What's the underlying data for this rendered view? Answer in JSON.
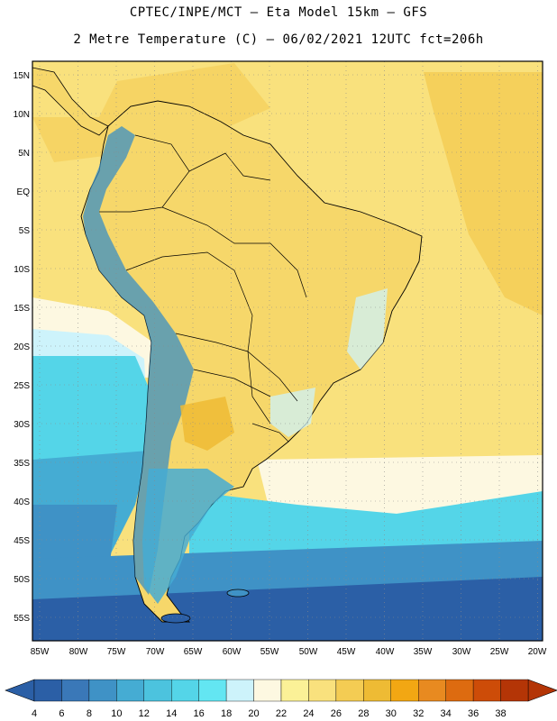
{
  "header": {
    "line1": "CPTEC/INPE/MCT –  Eta Model 15km – GFS",
    "line2": "2 Metre Temperature (C) – 06/02/2021 12UTC fct=206h"
  },
  "axes": {
    "lat_labels": [
      "15N",
      "10N",
      "5N",
      "EQ",
      "5S",
      "10S",
      "15S",
      "20S",
      "25S",
      "30S",
      "35S",
      "40S",
      "45S",
      "50S",
      "55S"
    ],
    "lon_labels": [
      "85W",
      "80W",
      "75W",
      "70W",
      "65W",
      "60W",
      "55W",
      "50W",
      "45W",
      "40W",
      "35W",
      "30W",
      "25W",
      "20W"
    ]
  },
  "colorbar": {
    "labels": [
      "4",
      "6",
      "8",
      "10",
      "12",
      "14",
      "16",
      "18",
      "20",
      "22",
      "24",
      "26",
      "28",
      "30",
      "32",
      "34",
      "36",
      "38"
    ],
    "colors": [
      "#2b5fa6",
      "#3a78b8",
      "#3f92c6",
      "#45acd3",
      "#4cc3de",
      "#54d5e8",
      "#63e6f2",
      "#cdf3fb",
      "#fdf8e1",
      "#fbf197",
      "#f9e17d",
      "#f4cc53",
      "#eebb34",
      "#f2a713",
      "#e88a20",
      "#dd6b10",
      "#cd4c08",
      "#b43506"
    ]
  },
  "map_colors": {
    "ocean_warm": "#f9e17d",
    "ocean_hot": "#f4cc53",
    "ocean_mild": "#fdf8e1",
    "ocean_cool": "#cdf3fb",
    "ocean_cold": "#4cc3de",
    "ocean_colder": "#3f92c6",
    "ocean_coldest": "#2b5fa6",
    "land": "#f6d76a",
    "andes": "#3a8fc4",
    "border": "#000000"
  }
}
